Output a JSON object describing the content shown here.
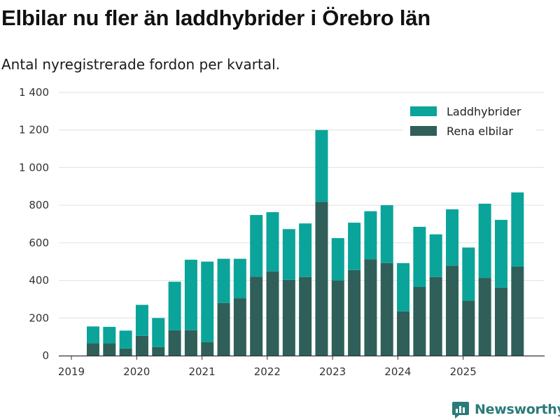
{
  "title": "Elbilar nu fler än laddhybrider i Örebro län",
  "subtitle": "Antal nyregistrerade fordon per kvartal.",
  "brand": "Newsworthy",
  "colors": {
    "laddhybrider": "#0aa49a",
    "elbilar": "#2f5f58",
    "grid": "#e0e0e0",
    "axis": "#333333",
    "brand": "#2b7c79"
  },
  "chart_data": {
    "type": "bar",
    "stacked": true,
    "title": "Elbilar nu fler än laddhybrider i Örebro län",
    "subtitle": "Antal nyregistrerade fordon per kvartal.",
    "xlabel": "",
    "ylabel": "",
    "ylim": [
      0,
      1400
    ],
    "y_ticks": [
      0,
      200,
      400,
      600,
      800,
      1000,
      1200,
      1400
    ],
    "y_tick_labels": [
      "0",
      "200",
      "400",
      "600",
      "800",
      "1 000",
      "1 200",
      "1 400"
    ],
    "x_tick_labels": [
      "2019",
      "2020",
      "2021",
      "2022",
      "2023",
      "2024",
      "2025"
    ],
    "x_range_quarters": [
      0,
      27
    ],
    "grid": true,
    "legend_position": "top-right",
    "categories": [
      "2019 Q2",
      "2019 Q3",
      "2019 Q4",
      "2020 Q1",
      "2020 Q2",
      "2020 Q3",
      "2020 Q4",
      "2021 Q1",
      "2021 Q2",
      "2021 Q3",
      "2021 Q4",
      "2022 Q1",
      "2022 Q2",
      "2022 Q3",
      "2022 Q4",
      "2023 Q1",
      "2023 Q2",
      "2023 Q3",
      "2023 Q4",
      "2024 Q1",
      "2024 Q2",
      "2024 Q3",
      "2024 Q4",
      "2025 Q1",
      "2025 Q2",
      "2025 Q3",
      "2025 Q4"
    ],
    "series": [
      {
        "name": "Rena elbilar",
        "values": [
          65,
          65,
          38,
          105,
          45,
          135,
          135,
          72,
          280,
          305,
          420,
          448,
          403,
          418,
          818,
          400,
          455,
          513,
          492,
          235,
          365,
          418,
          478,
          292,
          413,
          362,
          473
        ]
      },
      {
        "name": "Laddhybrider",
        "values": [
          90,
          88,
          95,
          165,
          155,
          258,
          375,
          428,
          235,
          210,
          328,
          315,
          270,
          285,
          382,
          225,
          252,
          255,
          308,
          257,
          320,
          227,
          300,
          283,
          395,
          360,
          395
        ]
      }
    ],
    "legend": [
      "Laddhybrider",
      "Rena elbilar"
    ]
  }
}
